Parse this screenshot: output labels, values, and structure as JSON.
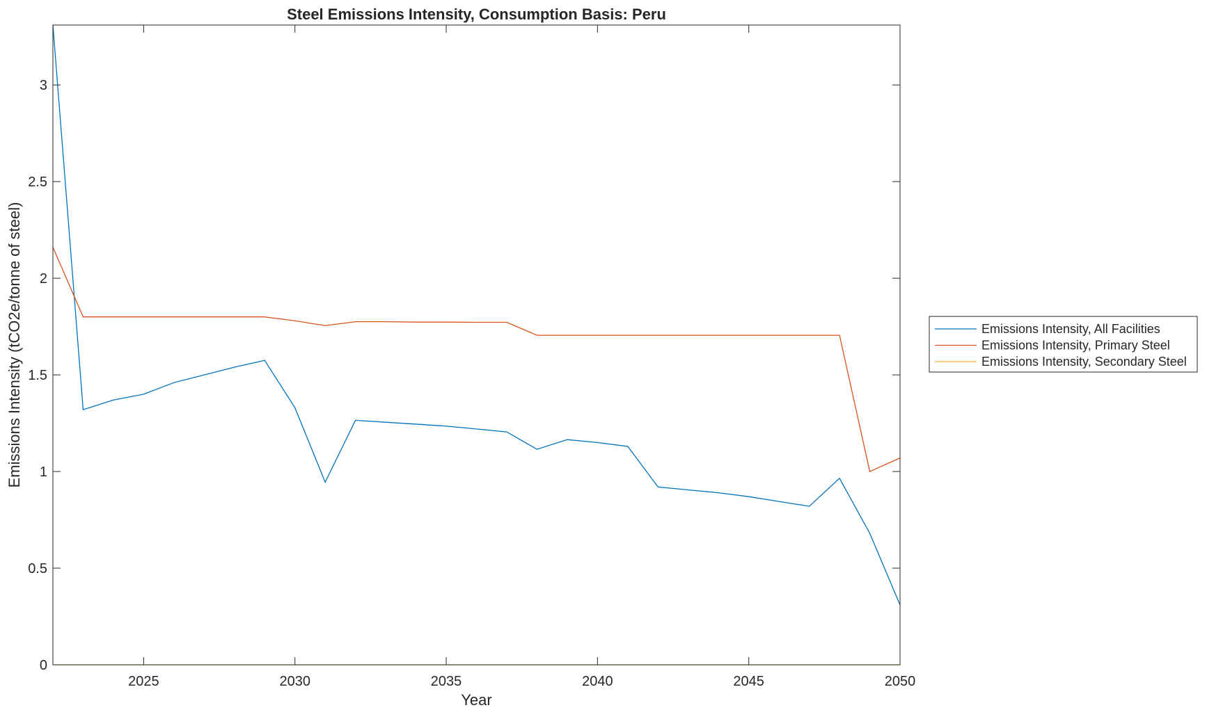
{
  "chart_data": {
    "type": "line",
    "title": "Steel Emissions Intensity, Consumption Basis: Peru",
    "xlabel": "Year",
    "ylabel": "Emissions Intensity (tCO2e/tonne of steel)",
    "xlim": [
      2022,
      2050
    ],
    "ylim": [
      0,
      3.31
    ],
    "x_ticks": [
      2025,
      2030,
      2035,
      2040,
      2045,
      2050
    ],
    "y_ticks": [
      0,
      0.5,
      1,
      1.5,
      2,
      2.5,
      3
    ],
    "x": [
      2022,
      2023,
      2024,
      2025,
      2026,
      2027,
      2028,
      2029,
      2030,
      2031,
      2032,
      2033,
      2034,
      2035,
      2036,
      2037,
      2038,
      2039,
      2040,
      2041,
      2042,
      2043,
      2044,
      2045,
      2046,
      2047,
      2048,
      2049,
      2050
    ],
    "series": [
      {
        "name": "Emissions Intensity, All Facilities",
        "color": "#0072BD",
        "values": [
          3.31,
          1.32,
          1.37,
          1.4,
          1.46,
          1.5,
          1.54,
          1.575,
          1.33,
          0.945,
          1.265,
          1.255,
          1.245,
          1.235,
          1.22,
          1.205,
          1.115,
          1.165,
          1.15,
          1.13,
          0.92,
          0.905,
          0.89,
          0.87,
          0.845,
          0.82,
          0.965,
          0.68,
          0.31
        ]
      },
      {
        "name": "Emissions Intensity, Primary Steel",
        "color": "#D95319",
        "values": [
          2.16,
          1.8,
          1.8,
          1.8,
          1.8,
          1.8,
          1.8,
          1.8,
          1.78,
          1.755,
          1.775,
          1.775,
          1.773,
          1.773,
          1.772,
          1.772,
          1.705,
          1.705,
          1.705,
          1.705,
          1.705,
          1.705,
          1.705,
          1.705,
          1.705,
          1.705,
          1.705,
          1.0,
          1.07
        ]
      },
      {
        "name": "Emissions Intensity, Secondary Steel",
        "color": "#EDB120",
        "values": [
          0,
          0,
          0,
          0,
          0,
          0,
          0,
          0,
          0,
          0,
          0,
          0,
          0,
          0,
          0,
          0,
          0,
          0,
          0,
          0,
          0,
          0,
          0,
          0,
          0,
          0,
          0,
          0,
          0
        ]
      }
    ],
    "grid": false,
    "legend_position": "outside-right"
  }
}
